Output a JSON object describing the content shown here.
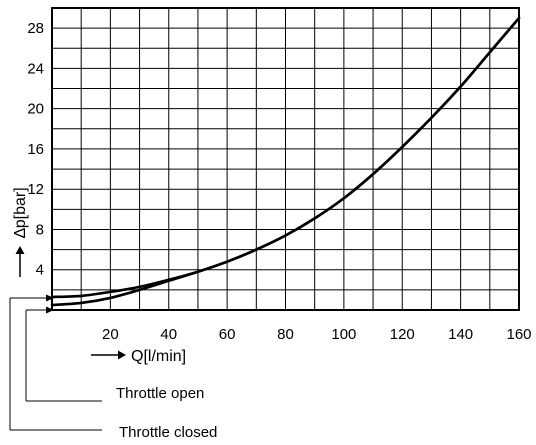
{
  "chart_data": {
    "type": "line",
    "xlabel": "Q[l/min]",
    "ylabel": "∆p[bar]",
    "xlim": [
      0,
      160
    ],
    "ylim": [
      0,
      30
    ],
    "x_ticks": [
      "20",
      "40",
      "60",
      "80",
      "100",
      "120",
      "140",
      "160"
    ],
    "y_ticks": [
      "4",
      "8",
      "12",
      "16",
      "20",
      "24",
      "28"
    ],
    "grid": true,
    "series": [
      {
        "name": "Throttle closed",
        "x": [
          0,
          10,
          20,
          30,
          40,
          50,
          60,
          70,
          80,
          90,
          100,
          110,
          120,
          130,
          140,
          150,
          160
        ],
        "y": [
          1.3,
          1.4,
          1.8,
          2.3,
          3.0,
          3.8,
          4.8,
          6.0,
          7.4,
          9.1,
          11.1,
          13.5,
          16.2,
          19.1,
          22.2,
          25.6,
          29.0
        ]
      },
      {
        "name": "Throttle open",
        "x": [
          0,
          10,
          20,
          30,
          40,
          50,
          60,
          70,
          80,
          90,
          100,
          110,
          120,
          130,
          140,
          150,
          160
        ],
        "y": [
          0.5,
          0.7,
          1.2,
          2.0,
          2.9,
          3.8,
          4.8,
          6.0,
          7.4,
          9.1,
          11.1,
          13.5,
          16.2,
          19.1,
          22.2,
          25.6,
          29.0
        ]
      }
    ]
  }
}
